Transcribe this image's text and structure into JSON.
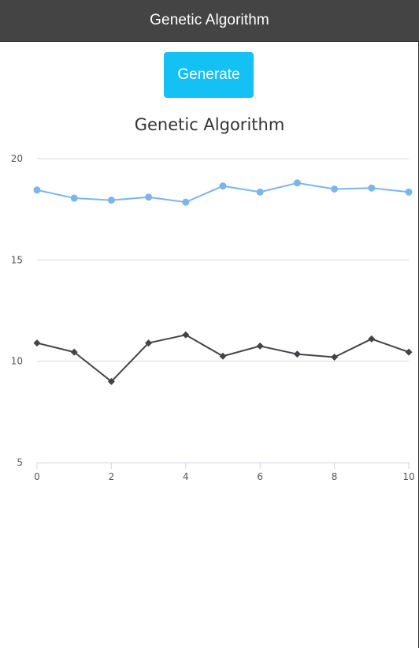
{
  "header": {
    "title": "Genetic Algorithm"
  },
  "controls": {
    "generate_label": "Generate"
  },
  "chart_data": {
    "type": "line",
    "title": "Genetic Algorithm",
    "x": [
      0,
      1,
      2,
      3,
      4,
      5,
      6,
      7,
      8,
      9,
      10
    ],
    "xlim": [
      0,
      10
    ],
    "ylim": [
      5,
      20
    ],
    "x_ticks": [
      "0",
      "2",
      "4",
      "6",
      "8",
      "10"
    ],
    "y_ticks": [
      "5",
      "10",
      "15",
      "20"
    ],
    "grid": true,
    "series": [
      {
        "values": [
          18.45,
          18.05,
          17.95,
          18.1,
          17.85,
          18.65,
          18.35,
          18.8,
          18.5,
          18.55,
          18.35
        ],
        "color": "#7cb5ec",
        "marker": "circle"
      },
      {
        "values": [
          10.9,
          10.45,
          9.0,
          10.9,
          11.3,
          10.25,
          10.75,
          10.35,
          10.2,
          11.1,
          10.45
        ],
        "color": "#434348",
        "marker": "diamond"
      }
    ]
  }
}
